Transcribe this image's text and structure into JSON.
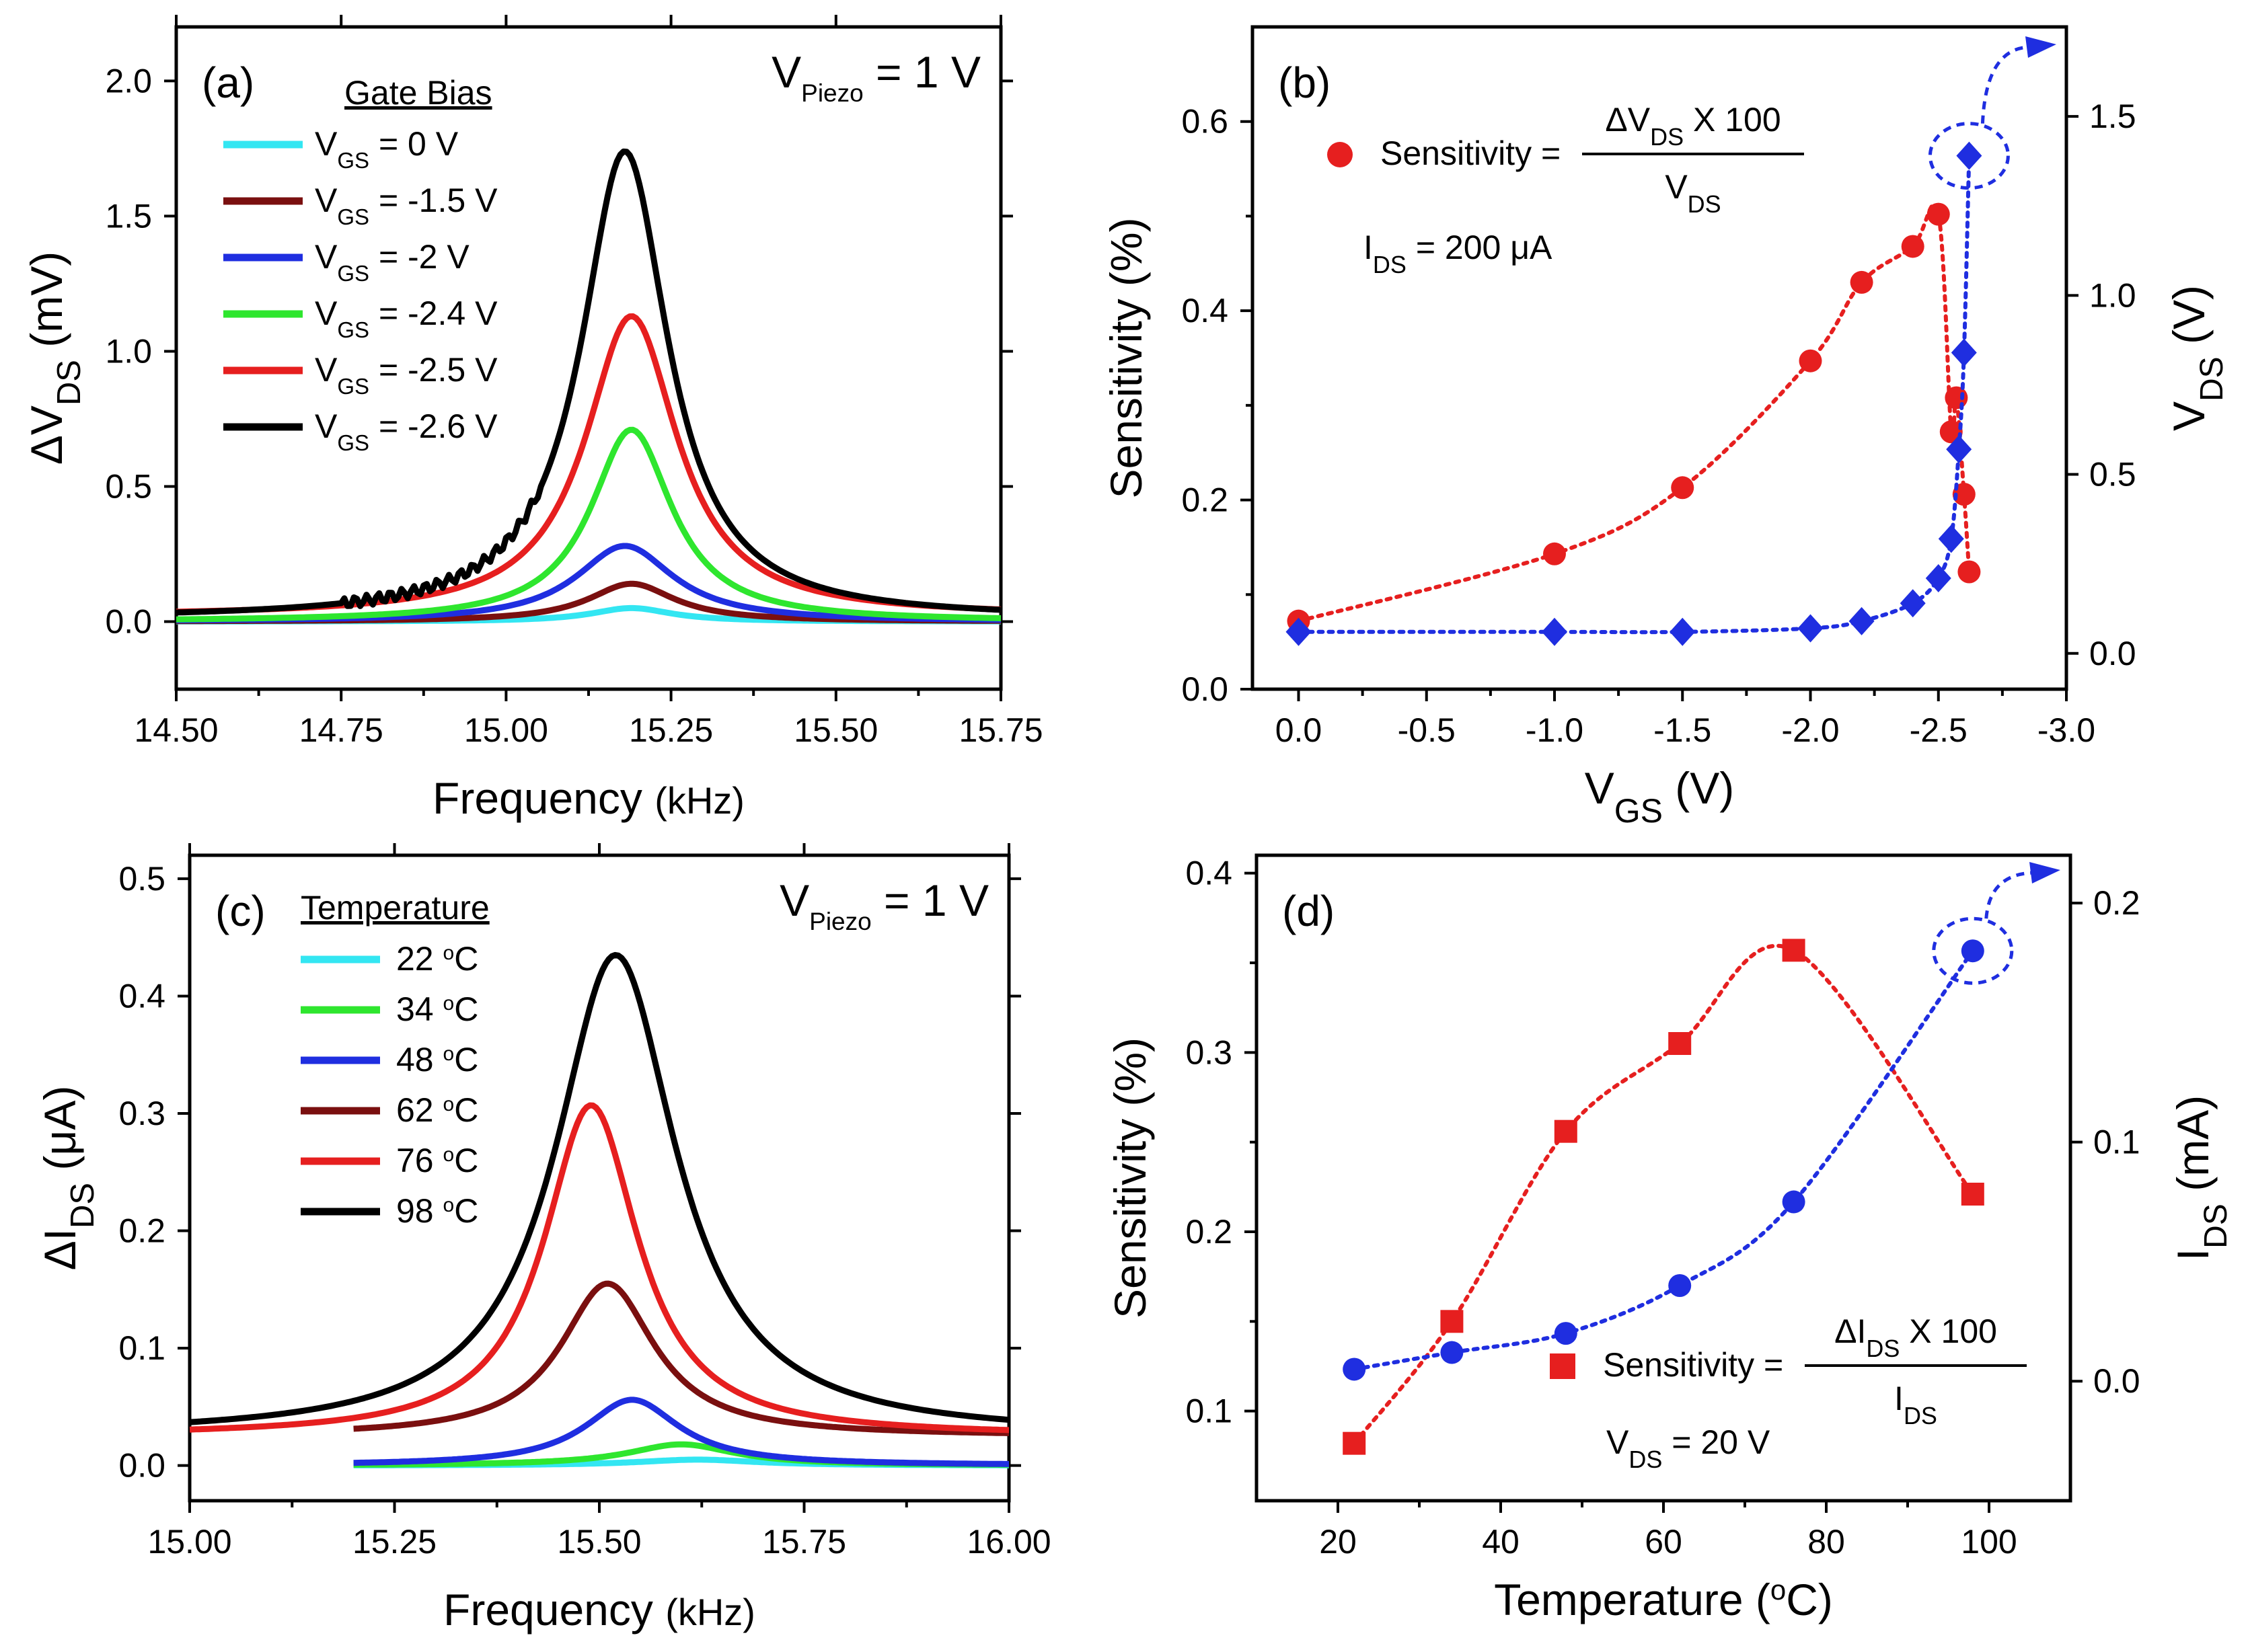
{
  "chart_data": [
    {
      "id": "a",
      "type": "line",
      "panel_label": "(a)",
      "xlabel": {
        "main": "Frequency",
        "unit": "(kHz)"
      },
      "ylabel": {
        "pre": "ΔV",
        "sub": "DS",
        "post": " (mV)"
      },
      "xlim": [
        14.5,
        15.75
      ],
      "ylim": [
        -0.25,
        2.2
      ],
      "xticks": [
        "14.50",
        "14.75",
        "15.00",
        "15.25",
        "15.50",
        "15.75"
      ],
      "xtick_values": [
        14.5,
        14.75,
        15.0,
        15.25,
        15.5,
        15.75
      ],
      "yticks": [
        "0.0",
        "0.5",
        "1.0",
        "1.5",
        "2.0"
      ],
      "ytick_values": [
        0.0,
        0.5,
        1.0,
        1.5,
        2.0
      ],
      "annotation": {
        "pre": "V",
        "sub": "Piezo",
        "post": " = 1 V"
      },
      "legend_title": "Gate Bias",
      "series": [
        {
          "name": "V_GS = 0 V",
          "leg_pre": "V",
          "leg_sub": "GS",
          "leg_post": " = 0 V",
          "color": "#33e6f2",
          "peak": 0.05,
          "center": 15.19,
          "hw": 0.075,
          "base": 0.0
        },
        {
          "name": "V_GS = -1.5 V",
          "leg_pre": "V",
          "leg_sub": "GS",
          "leg_post": " = -1.5 V",
          "color": "#7a0f0f",
          "peak": 0.14,
          "center": 15.19,
          "hw": 0.08,
          "base": 0.0
        },
        {
          "name": "V_GS = -2 V",
          "leg_pre": "V",
          "leg_sub": "GS",
          "leg_post": " = -2 V",
          "color": "#1f2ee0",
          "peak": 0.28,
          "center": 15.18,
          "hw": 0.09,
          "base": 0.0
        },
        {
          "name": "V_GS = -2.4 V",
          "leg_pre": "V",
          "leg_sub": "GS",
          "leg_post": " = -2.4 V",
          "color": "#2ee62e",
          "peak": 0.71,
          "center": 15.19,
          "hw": 0.075,
          "base": 0.0
        },
        {
          "name": "V_GS = -2.5 V",
          "leg_pre": "V",
          "leg_sub": "GS",
          "leg_post": " = -2.5 V",
          "color": "#e61f1f",
          "peak": 1.11,
          "center": 15.19,
          "hw": 0.085,
          "base": 0.02
        },
        {
          "name": "V_GS = -2.6 V",
          "leg_pre": "V",
          "leg_sub": "GS",
          "leg_post": " = -2.6 V",
          "color": "#000000",
          "peak": 1.73,
          "center": 15.18,
          "hw": 0.08,
          "base": 0.01
        }
      ]
    },
    {
      "id": "b",
      "type": "scatter",
      "panel_label": "(b)",
      "xlabel": {
        "pre": "V",
        "sub": "GS",
        "post": " (V)"
      },
      "ylabel": "Sensitivity (%)",
      "y2label": {
        "pre": "V",
        "sub": "DS",
        "post": " (V)"
      },
      "xlim": [
        0.18,
        -3.0
      ],
      "ylim": [
        0.0,
        0.7
      ],
      "y2lim": [
        -0.1,
        1.75
      ],
      "xticks": [
        "0.0",
        "-0.5",
        "-1.0",
        "-1.5",
        "-2.0",
        "-2.5",
        "-3.0"
      ],
      "xtick_values": [
        0.0,
        -0.5,
        -1.0,
        -1.5,
        -2.0,
        -2.5,
        -3.0
      ],
      "yticks": [
        "0.0",
        "0.2",
        "0.4",
        "0.6"
      ],
      "ytick_values": [
        0.0,
        0.2,
        0.4,
        0.6
      ],
      "y2ticks": [
        "0.0",
        "0.5",
        "1.0",
        "1.5"
      ],
      "y2tick_values": [
        0.0,
        0.5,
        1.0,
        1.5
      ],
      "formula": {
        "left": "Sensitivity = ",
        "num_pre": "ΔV",
        "num_sub": "DS",
        "num_post": " X 100",
        "den_pre": "V",
        "den_sub": "DS"
      },
      "condition": {
        "pre": "I",
        "sub": "DS",
        "post": " = 200 μA"
      },
      "series": [
        {
          "name": "Sensitivity",
          "axis": "left",
          "marker": "circle",
          "color": "#e61f1f",
          "x": [
            0.0,
            -1.0,
            -1.5,
            -2.0,
            -2.2,
            -2.4,
            -2.5,
            -2.55,
            -2.57,
            -2.6,
            -2.62
          ],
          "y": [
            0.072,
            0.143,
            0.213,
            0.347,
            0.43,
            0.468,
            0.502,
            0.272,
            0.308,
            0.206,
            0.124
          ]
        },
        {
          "name": "V_DS",
          "axis": "right",
          "marker": "diamond",
          "color": "#1f2ee0",
          "x": [
            0.0,
            -1.0,
            -1.5,
            -2.0,
            -2.2,
            -2.4,
            -2.5,
            -2.55,
            -2.58,
            -2.6,
            -2.62
          ],
          "y": [
            0.06,
            0.06,
            0.06,
            0.07,
            0.09,
            0.14,
            0.21,
            0.32,
            0.57,
            0.84,
            1.39
          ]
        }
      ]
    },
    {
      "id": "c",
      "type": "line",
      "panel_label": "(c)",
      "xlabel": {
        "main": "Frequency",
        "unit": "(kHz)"
      },
      "ylabel": {
        "pre": "ΔI",
        "sub": "DS",
        "post": " (μA)"
      },
      "xlim": [
        15.0,
        16.0
      ],
      "ylim": [
        -0.03,
        0.52
      ],
      "xticks": [
        "15.00",
        "15.25",
        "15.50",
        "15.75",
        "16.00"
      ],
      "xtick_values": [
        15.0,
        15.25,
        15.5,
        15.75,
        16.0
      ],
      "yticks": [
        "0.0",
        "0.1",
        "0.2",
        "0.3",
        "0.4",
        "0.5"
      ],
      "ytick_values": [
        0.0,
        0.1,
        0.2,
        0.3,
        0.4,
        0.5
      ],
      "annotation": {
        "pre": "V",
        "sub": "Piezo",
        "post": " = 1 V"
      },
      "legend_title": "Temperature",
      "series": [
        {
          "name": "22 °C",
          "leg_num": "22 ",
          "leg_deg": "o",
          "leg_unit": "C",
          "color": "#33e6f2",
          "peak": 0.005,
          "center": 15.62,
          "hw": 0.09,
          "base": 0.0,
          "xstart": 15.2
        },
        {
          "name": "34 °C",
          "leg_num": "34 ",
          "leg_deg": "o",
          "leg_unit": "C",
          "color": "#2ee62e",
          "peak": 0.018,
          "center": 15.6,
          "hw": 0.08,
          "base": 0.0,
          "xstart": 15.2
        },
        {
          "name": "48 °C",
          "leg_num": "48 ",
          "leg_deg": "o",
          "leg_unit": "C",
          "color": "#1f2ee0",
          "peak": 0.056,
          "center": 15.54,
          "hw": 0.07,
          "base": 0.0,
          "xstart": 15.2
        },
        {
          "name": "62 °C",
          "leg_num": "62 ",
          "leg_deg": "o",
          "leg_unit": "C",
          "color": "#7a0f0f",
          "peak": 0.13,
          "center": 15.51,
          "hw": 0.07,
          "base": 0.025,
          "xstart": 15.2
        },
        {
          "name": "76 °C",
          "leg_num": "76 ",
          "leg_deg": "o",
          "leg_unit": "C",
          "color": "#e61f1f",
          "peak": 0.282,
          "center": 15.49,
          "hw": 0.07,
          "base": 0.025,
          "xstart": 15.0
        },
        {
          "name": "98 °C",
          "leg_num": "98 ",
          "leg_deg": "o",
          "leg_unit": "C",
          "color": "#000000",
          "peak": 0.41,
          "center": 15.52,
          "hw": 0.09,
          "base": 0.025,
          "xstart": 15.0
        }
      ]
    },
    {
      "id": "d",
      "type": "scatter",
      "panel_label": "(d)",
      "xlabel": {
        "pre": "Temperature (",
        "sup": "o",
        "post": "C)"
      },
      "ylabel": "Sensitivity (%)",
      "y2label": {
        "pre": "I",
        "sub": "DS",
        "post": " (mA)"
      },
      "xlim": [
        10,
        110
      ],
      "ylim": [
        0.05,
        0.41
      ],
      "y2lim": [
        -0.05,
        0.22
      ],
      "xticks": [
        "20",
        "40",
        "60",
        "80",
        "100"
      ],
      "xtick_values": [
        20,
        40,
        60,
        80,
        100
      ],
      "yticks": [
        "0.1",
        "0.2",
        "0.3",
        "0.4"
      ],
      "ytick_values": [
        0.1,
        0.2,
        0.3,
        0.4
      ],
      "y2ticks": [
        "0.0",
        "0.1",
        "0.2"
      ],
      "y2tick_values": [
        0.0,
        0.1,
        0.2
      ],
      "formula": {
        "left": "Sensitivity = ",
        "num_pre": "ΔI",
        "num_sub": "DS",
        "num_post": " X 100",
        "den_pre": "I",
        "den_sub": "DS"
      },
      "condition": {
        "pre": "V",
        "sub": "DS",
        "post": " = 20 V"
      },
      "series": [
        {
          "name": "Sensitivity",
          "axis": "left",
          "marker": "square",
          "color": "#e61f1f",
          "x": [
            22,
            34,
            48,
            62,
            76,
            98
          ],
          "y": [
            0.082,
            0.15,
            0.256,
            0.305,
            0.357,
            0.221
          ]
        },
        {
          "name": "I_DS",
          "axis": "right",
          "marker": "circle",
          "color": "#1f2ee0",
          "x": [
            22,
            34,
            48,
            62,
            76,
            98
          ],
          "y": [
            0.005,
            0.012,
            0.02,
            0.04,
            0.075,
            0.18
          ]
        }
      ]
    }
  ]
}
